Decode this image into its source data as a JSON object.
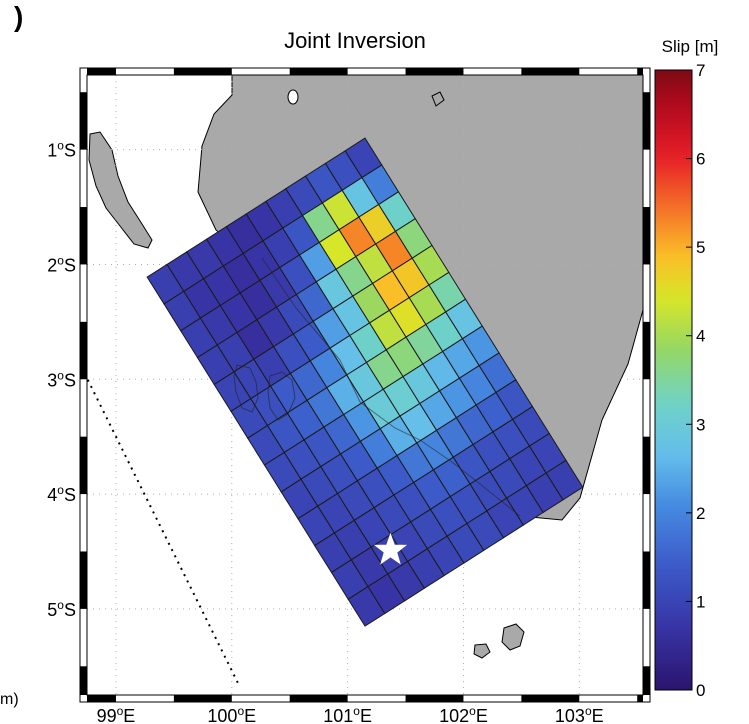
{
  "panel_label": ")",
  "title": "Joint Inversion",
  "corner_note": "m)",
  "colorbar": {
    "label": "Slip [m]",
    "min": 0,
    "max": 7,
    "ticks": [
      "0",
      "1",
      "2",
      "3",
      "4",
      "5",
      "6",
      "7"
    ]
  },
  "map": {
    "lon_range": [
      98.75,
      103.55
    ],
    "lat_range": [
      -5.75,
      -0.35
    ],
    "lon_ticks": [
      {
        "value": 99,
        "label": "99",
        "sup": "o",
        "hemi": "E"
      },
      {
        "value": 100,
        "label": "100",
        "sup": "o",
        "hemi": "E"
      },
      {
        "value": 101,
        "label": "101",
        "sup": "o",
        "hemi": "E"
      },
      {
        "value": 102,
        "label": "102",
        "sup": "o",
        "hemi": "E"
      },
      {
        "value": 103,
        "label": "103",
        "sup": "o",
        "hemi": "E"
      }
    ],
    "lat_ticks": [
      {
        "value": -1,
        "label": "1",
        "sup": "o",
        "hemi": "S"
      },
      {
        "value": -2,
        "label": "2",
        "sup": "o",
        "hemi": "S"
      },
      {
        "value": -3,
        "label": "3",
        "sup": "o",
        "hemi": "S"
      },
      {
        "value": -4,
        "label": "4",
        "sup": "o",
        "hemi": "S"
      },
      {
        "value": -5,
        "label": "5",
        "sup": "o",
        "hemi": "S"
      }
    ],
    "fault_corners": {
      "top_left": {
        "lon": 99.27,
        "lat": -2.11
      },
      "top_right": {
        "lon": 101.15,
        "lat": -0.9
      },
      "bottom_left": {
        "lon": 101.15,
        "lat": -5.15
      },
      "bottom_right": {
        "lon": 103.05,
        "lat": -3.93
      }
    },
    "epicenter": {
      "lon": 101.37,
      "lat": -4.49
    },
    "trench": [
      {
        "lon": 98.73,
        "lat": -2.95
      },
      {
        "lon": 100.07,
        "lat": -5.68
      }
    ],
    "colors": {
      "land": "#a9a9a9",
      "sea": "#ffffff",
      "grid": "#b0b0b0",
      "cell_edge": "#1b1b1b",
      "star": "#ffffff"
    }
  },
  "chart_data": {
    "type": "heatmap",
    "title": "Joint Inversion",
    "units": "Slip [m]",
    "value_range": [
      0,
      7
    ],
    "rows_along_strike": 11,
    "cols_along_dip": 13,
    "slip": [
      [
        0.9,
        0.9,
        0.9,
        0.9,
        1.0,
        1.1,
        1.1,
        1.1,
        1.0,
        1.0,
        0.9,
        0.9,
        0.8
      ],
      [
        0.8,
        0.7,
        0.8,
        0.9,
        1.0,
        1.2,
        1.3,
        1.2,
        1.1,
        1.0,
        0.9,
        0.8,
        0.7
      ],
      [
        0.8,
        0.7,
        0.7,
        0.6,
        0.9,
        1.4,
        1.5,
        1.3,
        1.2,
        1.1,
        1.0,
        0.9,
        0.8
      ],
      [
        0.7,
        0.6,
        0.6,
        0.8,
        1.2,
        1.6,
        1.8,
        1.6,
        1.4,
        1.2,
        1.1,
        1.0,
        0.9
      ],
      [
        0.6,
        0.7,
        0.8,
        1.1,
        1.4,
        2.0,
        2.5,
        2.2,
        1.9,
        1.4,
        1.2,
        1.1,
        1.0
      ],
      [
        0.7,
        0.9,
        1.2,
        1.6,
        2.3,
        2.7,
        2.9,
        3.0,
        2.5,
        1.8,
        1.4,
        1.2,
        1.1
      ],
      [
        0.9,
        1.3,
        2.3,
        2.9,
        2.8,
        3.2,
        3.6,
        3.1,
        2.7,
        2.0,
        1.5,
        1.2,
        1.1
      ],
      [
        1.1,
        3.6,
        4.4,
        3.6,
        3.9,
        4.2,
        3.7,
        2.9,
        2.4,
        1.8,
        1.3,
        1.1,
        1.0
      ],
      [
        1.3,
        4.3,
        5.3,
        4.2,
        4.9,
        4.5,
        3.5,
        2.6,
        2.2,
        1.6,
        1.2,
        1.1,
        1.0
      ],
      [
        1.2,
        2.8,
        4.7,
        5.3,
        4.8,
        4.0,
        3.2,
        2.4,
        2.0,
        1.5,
        1.2,
        1.0,
        0.9
      ],
      [
        1.0,
        1.9,
        3.2,
        3.7,
        4.0,
        3.4,
        2.8,
        2.2,
        1.7,
        1.3,
        1.1,
        1.0,
        0.9
      ]
    ]
  }
}
